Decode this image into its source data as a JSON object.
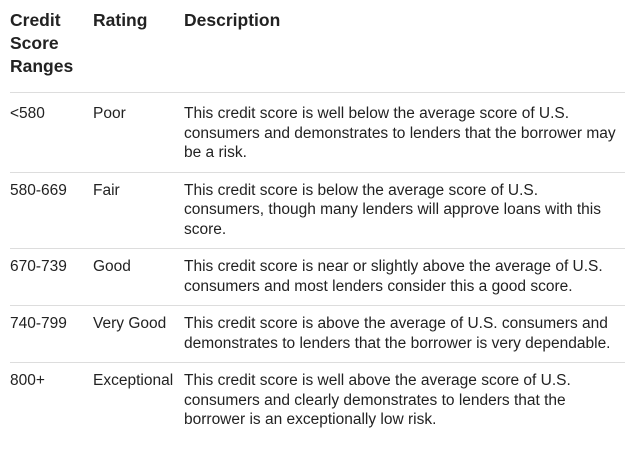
{
  "table": {
    "headers": [
      "Credit Score Ranges",
      "Rating",
      "Description"
    ],
    "rows": [
      {
        "range": "<580",
        "rating": "Poor",
        "description": "This credit score is well below the average score of U.S. consumers and demonstrates to lenders that the borrower may be a risk."
      },
      {
        "range": "580-669",
        "rating": "Fair",
        "description": "This credit score is below the average score of U.S. consumers, though many lenders will approve loans with this score."
      },
      {
        "range": "670-739",
        "rating": "Good",
        "description": "This credit score is near or slightly above the average of U.S. consumers and most lenders consider this a good score."
      },
      {
        "range": "740-799",
        "rating": "Very Good",
        "description": "This credit score is above the average of U.S. consumers and demonstrates to lenders that the borrower is very dependable."
      },
      {
        "range": "800+",
        "rating": "Exceptional",
        "description": "This credit score is well above the average score of U.S. consumers and clearly demonstrates to lenders that the borrower is an exceptionally low risk."
      }
    ]
  }
}
